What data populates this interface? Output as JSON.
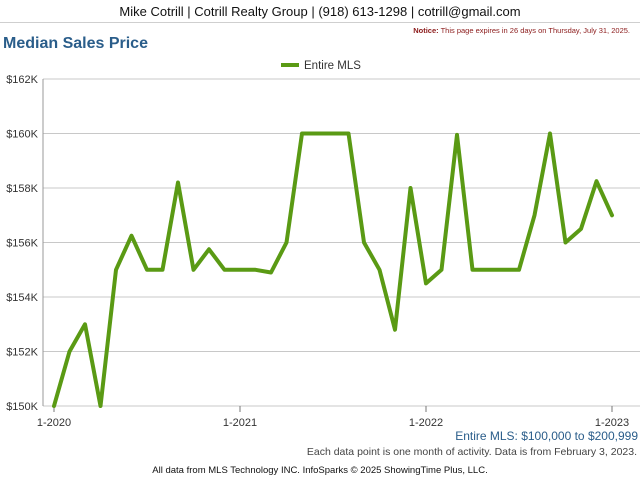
{
  "header": {
    "contact": "Mike Cotrill | Cotrill Realty Group | (918) 613-1298 | cotrill@gmail.com"
  },
  "notice": {
    "label": "Notice:",
    "text": "This page expires in 26 days on Thursday, July 31, 2025."
  },
  "page_title": "Median Sales Price",
  "range_note": "Entire MLS: $100,000 to $200,999",
  "activity_note": "Each data point is one month of activity. Data is from February 3, 2023.",
  "footer": "All data from MLS Technology INC. InfoSparks © 2025 ShowingTime Plus, LLC.",
  "colors": {
    "series": "#5a9a14",
    "title": "#2a5d8a",
    "grid": "#c8c8c8",
    "notice": "#8b1a1a"
  },
  "chart_data": {
    "type": "line",
    "title": "",
    "xlabel": "",
    "ylabel": "",
    "legend_position": "top-center",
    "grid": true,
    "ylim": [
      150000,
      162000
    ],
    "y_ticks": [
      150000,
      152000,
      154000,
      156000,
      158000,
      160000,
      162000
    ],
    "y_tick_labels": [
      "$150K",
      "$152K",
      "$154K",
      "$156K",
      "$158K",
      "$160K",
      "$162K"
    ],
    "x_tick_labels": [
      "1-2020",
      "1-2021",
      "1-2022",
      "1-2023"
    ],
    "x_tick_positions": [
      "2020-01",
      "2021-01",
      "2022-01",
      "2023-01"
    ],
    "x": [
      "2020-01",
      "2020-02",
      "2020-03",
      "2020-04",
      "2020-05",
      "2020-06",
      "2020-07",
      "2020-08",
      "2020-09",
      "2020-10",
      "2020-11",
      "2020-12",
      "2021-01",
      "2021-02",
      "2021-03",
      "2021-04",
      "2021-05",
      "2021-06",
      "2021-07",
      "2021-08",
      "2021-09",
      "2021-10",
      "2021-11",
      "2021-12",
      "2022-01",
      "2022-02",
      "2022-03",
      "2022-04",
      "2022-05",
      "2022-06",
      "2022-07",
      "2022-08",
      "2022-09",
      "2022-10",
      "2022-11",
      "2022-12",
      "2023-01"
    ],
    "series": [
      {
        "name": "Entire MLS",
        "values": [
          150000,
          152000,
          153000,
          150000,
          155000,
          156250,
          155000,
          155000,
          158200,
          155000,
          155750,
          155000,
          155000,
          155000,
          154900,
          156000,
          160000,
          160000,
          160000,
          160000,
          156000,
          155000,
          152800,
          158000,
          154500,
          155000,
          159950,
          155000,
          155000,
          155000,
          155000,
          157000,
          160000,
          156000,
          156500,
          158250,
          157000
        ]
      }
    ]
  }
}
